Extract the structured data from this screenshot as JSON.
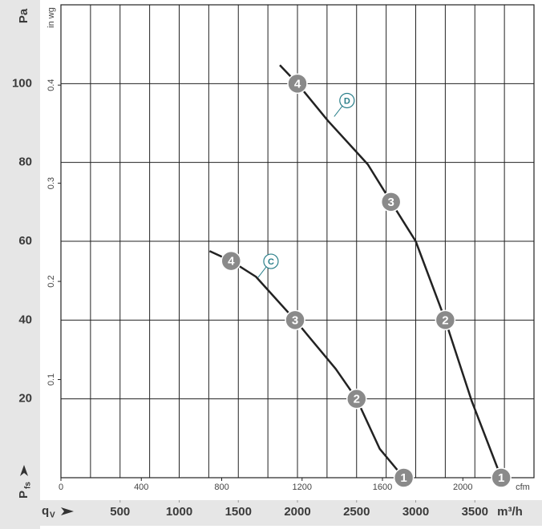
{
  "chart_data": {
    "type": "line",
    "y_axis_label": "Pa",
    "y2_axis_label": "in wg",
    "x_axis_label": "m³/h",
    "x2_axis_label": "cfm",
    "y_symbol": "P",
    "y_symbol_sub": "fs",
    "x_symbol": "q",
    "x_symbol_sub": "V",
    "xlim": [
      0,
      4000
    ],
    "xticks": [
      500,
      1000,
      1500,
      2000,
      2500,
      3000,
      3500
    ],
    "xgrid": [
      250,
      500,
      750,
      1000,
      1250,
      1500,
      1750,
      2000,
      2250,
      2500,
      2750,
      3000,
      3250,
      3500,
      3750
    ],
    "x2lim": [
      0,
      2354
    ],
    "x2ticks": [
      0,
      400,
      800,
      1200,
      1600,
      2000
    ],
    "ylim": [
      0,
      120
    ],
    "yticks": [
      20,
      40,
      60,
      80,
      100
    ],
    "y2lim": [
      0,
      0.4818
    ],
    "y2ticks": [
      0.1,
      0.2,
      0.3,
      0.4
    ],
    "grid": true,
    "series": [
      {
        "name": "C",
        "color": "#222222",
        "x": [
          1257,
          1439,
          1649,
          1980,
          2324,
          2500,
          2696,
          2899
        ],
        "values": [
          57.5,
          55,
          51,
          40,
          27.6,
          20,
          7.3,
          0
        ],
        "annotation_x": 1776,
        "annotation_y": 54.9,
        "points": [
          {
            "label": "4",
            "x": 1439,
            "y": 55
          },
          {
            "label": "3",
            "x": 1980,
            "y": 40
          },
          {
            "label": "2",
            "x": 2500,
            "y": 20
          },
          {
            "label": "1",
            "x": 2899,
            "y": 0
          }
        ]
      },
      {
        "name": "D",
        "color": "#222222",
        "x": [
          1851,
          2000,
          2257,
          2595,
          2791,
          3000,
          3250,
          3473,
          3723
        ],
        "values": [
          104.7,
          100,
          90.6,
          79.5,
          70,
          60,
          40,
          19.5,
          0
        ],
        "annotation_x": 2419,
        "annotation_y": 95.7,
        "points": [
          {
            "label": "4",
            "x": 2000,
            "y": 100
          },
          {
            "label": "3",
            "x": 2791,
            "y": 70
          },
          {
            "label": "2",
            "x": 3250,
            "y": 40
          },
          {
            "label": "1",
            "x": 3723,
            "y": 0
          }
        ]
      }
    ]
  }
}
